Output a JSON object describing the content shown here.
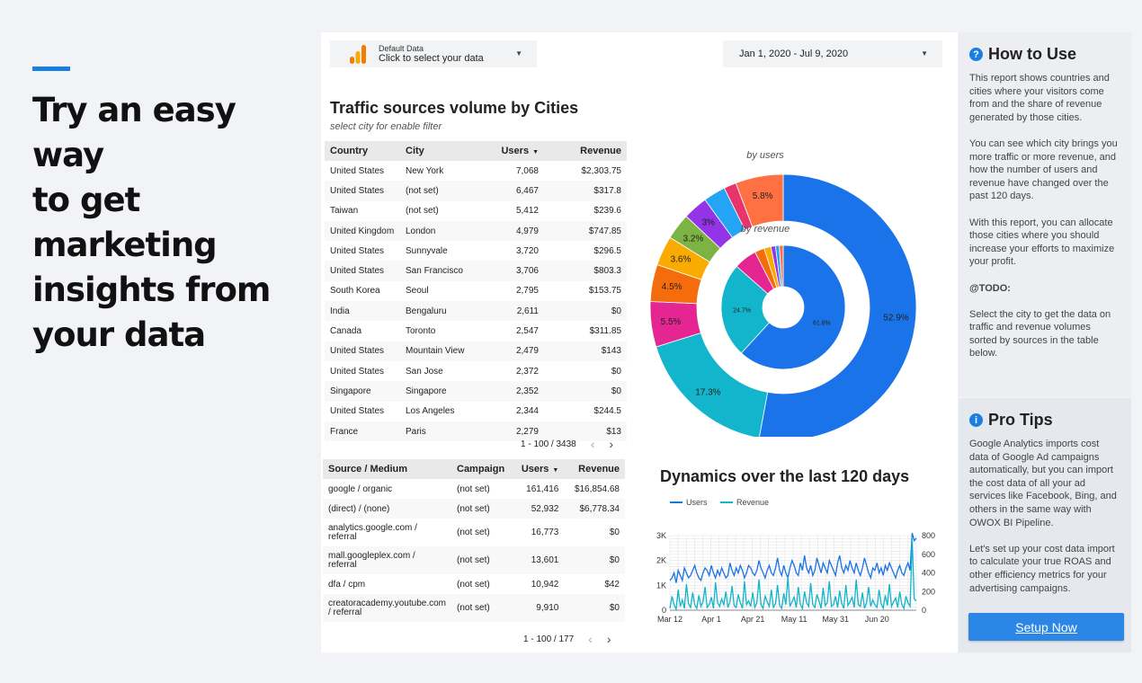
{
  "hero": {
    "line1": "Try an easy way",
    "line2": "to get marketing",
    "line3": "insights from",
    "line4": "your data"
  },
  "selector": {
    "label": "Default Data",
    "value": "Click to select your data"
  },
  "daterange": {
    "value": "Jan 1, 2020 - Jul 9, 2020"
  },
  "section1": {
    "title": "Traffic sources volume by Cities",
    "subtitle": "select city for enable filter"
  },
  "cities_table": {
    "headers": [
      "Country",
      "City",
      "Users",
      "Revenue"
    ],
    "rows": [
      [
        "United States",
        "New York",
        "7,068",
        "$2,303.75"
      ],
      [
        "United States",
        "(not set)",
        "6,467",
        "$317.8"
      ],
      [
        "Taiwan",
        "(not set)",
        "5,412",
        "$239.6"
      ],
      [
        "United Kingdom",
        "London",
        "4,979",
        "$747.85"
      ],
      [
        "United States",
        "Sunnyvale",
        "3,720",
        "$296.5"
      ],
      [
        "United States",
        "San Francisco",
        "3,706",
        "$803.3"
      ],
      [
        "South Korea",
        "Seoul",
        "2,795",
        "$153.75"
      ],
      [
        "India",
        "Bengaluru",
        "2,611",
        "$0"
      ],
      [
        "Canada",
        "Toronto",
        "2,547",
        "$311.85"
      ],
      [
        "United States",
        "Mountain View",
        "2,479",
        "$143"
      ],
      [
        "United States",
        "San Jose",
        "2,372",
        "$0"
      ],
      [
        "Singapore",
        "Singapore",
        "2,352",
        "$0"
      ],
      [
        "United States",
        "Los Angeles",
        "2,344",
        "$244.5"
      ],
      [
        "France",
        "Paris",
        "2,279",
        "$13"
      ]
    ],
    "pager": "1 - 100 / 3438"
  },
  "sources_table": {
    "headers": [
      "Source / Medium",
      "Campaign",
      "Users",
      "Revenue"
    ],
    "rows": [
      [
        "google / organic",
        "(not set)",
        "161,416",
        "$16,854.68"
      ],
      [
        "(direct) / (none)",
        "(not set)",
        "52,932",
        "$6,778.34"
      ],
      [
        "analytics.google.com / referral",
        "(not set)",
        "16,773",
        "$0"
      ],
      [
        "mall.googleplex.com / referral",
        "(not set)",
        "13,601",
        "$0"
      ],
      [
        "dfa / cpm",
        "(not set)",
        "10,942",
        "$42"
      ],
      [
        "creatoracademy.youtube.com / referral",
        "(not set)",
        "9,910",
        "$0"
      ]
    ],
    "pager": "1 - 100 / 177"
  },
  "chart_data": [
    {
      "type": "pie",
      "title": "",
      "outer_label": "by users",
      "inner_label": "by revenue",
      "outer": [
        {
          "label": "52.9%",
          "value": 52.9,
          "color": "#1a73e8"
        },
        {
          "label": "17.3%",
          "value": 17.3,
          "color": "#12b5cb"
        },
        {
          "label": "5.5%",
          "value": 5.5,
          "color": "#e52592"
        },
        {
          "label": "4.5%",
          "value": 4.5,
          "color": "#f56c0c"
        },
        {
          "label": "3.6%",
          "value": 3.6,
          "color": "#f9ab00"
        },
        {
          "label": "3.2%",
          "value": 3.2,
          "color": "#7cb342"
        },
        {
          "label": "3%",
          "value": 3.0,
          "color": "#9334e6"
        },
        {
          "label": "",
          "value": 2.7,
          "color": "#24a4f4"
        },
        {
          "label": "",
          "value": 1.5,
          "color": "#e8336b"
        },
        {
          "label": "5.8%",
          "value": 5.8,
          "color": "#ff7043"
        }
      ],
      "inner": [
        {
          "label": "61.8%",
          "value": 61.8,
          "color": "#1a73e8"
        },
        {
          "label": "24.7%",
          "value": 24.7,
          "color": "#12b5cb"
        },
        {
          "label": "",
          "value": 6.0,
          "color": "#e52592"
        },
        {
          "label": "",
          "value": 2.5,
          "color": "#f56c0c"
        },
        {
          "label": "",
          "value": 1.8,
          "color": "#f9ab00"
        },
        {
          "label": "",
          "value": 1.2,
          "color": "#9334e6"
        },
        {
          "label": "",
          "value": 1.0,
          "color": "#24a4f4"
        },
        {
          "label": "",
          "value": 1.0,
          "color": "#ff7043"
        }
      ]
    },
    {
      "type": "line",
      "title": "Dynamics over the last 120 days",
      "legend": [
        "Users",
        "Revenue"
      ],
      "legend_position": "top-left",
      "x_ticks": [
        "Mar 12",
        "Apr 1",
        "Apr 21",
        "May 11",
        "May 31",
        "Jun 20"
      ],
      "y_left_ticks": [
        "0",
        "1K",
        "2K",
        "3K"
      ],
      "y_right_ticks": [
        "0",
        "200",
        "400",
        "600",
        "800"
      ],
      "y_left_range": [
        0,
        3000
      ],
      "y_right_range": [
        0,
        800
      ],
      "series": [
        {
          "name": "Users",
          "color": "#1a73e8",
          "values": [
            1200,
            1300,
            1500,
            1100,
            1600,
            1400,
            1200,
            1700,
            1500,
            1300,
            1400,
            1600,
            1800,
            1500,
            1300,
            1200,
            1500,
            1700,
            1600,
            1400,
            1800,
            1500,
            1300,
            1600,
            1400,
            1700,
            1500,
            1300,
            1400,
            1900,
            1600,
            1400,
            1700,
            1500,
            1800,
            1600,
            1300,
            1500,
            1800,
            1700,
            1500,
            1400,
            1600,
            2000,
            1700,
            1500,
            1300,
            1600,
            1800,
            1500,
            1400,
            1700,
            2100,
            1600,
            1400,
            1800,
            1500,
            1300,
            1700,
            2000,
            1800,
            1500,
            1400,
            1900,
            1600,
            2200,
            1700,
            1500,
            1800,
            1400,
            1600,
            2100,
            1800,
            1500,
            1900,
            1700,
            1500,
            2000,
            1800,
            1600,
            1400,
            1900,
            2200,
            1700,
            1500,
            1800,
            1600,
            2000,
            1700,
            1500,
            1900,
            1600,
            1400,
            1700,
            2100,
            1800,
            1500,
            1300,
            1700,
            1600,
            1900,
            1500,
            1700,
            1400,
            1800,
            1600,
            1900,
            1700,
            1500,
            1300,
            1600,
            1800,
            1500,
            1400,
            1700,
            1900,
            1600,
            3100,
            2800,
            2900
          ]
        },
        {
          "name": "Revenue",
          "color": "#12b5cb",
          "values": [
            20,
            150,
            60,
            10,
            220,
            40,
            110,
            20,
            280,
            70,
            30,
            190,
            60,
            20,
            160,
            40,
            90,
            250,
            30,
            60,
            140,
            20,
            300,
            80,
            40,
            120,
            60,
            200,
            30,
            90,
            260,
            50,
            30,
            170,
            80,
            20,
            310,
            60,
            100,
            40,
            190,
            30,
            80,
            330,
            60,
            20,
            150,
            90,
            40,
            220,
            30,
            70,
            270,
            50,
            20,
            180,
            60,
            360,
            40,
            90,
            140,
            30,
            250,
            60,
            20,
            200,
            80,
            40,
            290,
            60,
            30,
            170,
            100,
            20,
            240,
            50,
            80,
            310,
            40,
            60,
            150,
            30,
            210,
            70,
            20,
            270,
            50,
            90,
            140,
            30,
            330,
            60,
            40,
            190,
            20,
            80,
            250,
            40,
            110,
            60,
            30,
            220,
            70,
            20,
            160,
            50,
            280,
            40,
            90,
            130,
            30,
            200,
            60,
            20,
            150,
            80,
            40,
            760,
            120,
            100
          ]
        }
      ]
    }
  ],
  "howto": {
    "title": "How to Use",
    "p1": "This report shows countries and cities where your visitors come from and the share of revenue generated by those cities.",
    "p2": "You can see which city brings you more traffic or more revenue, and how the number of users and revenue have changed over the past 120 days.",
    "p3": "With this report, you can allocate those cities where you should increase your efforts to maximize your profit.",
    "p4": "@TODO:",
    "p5": "Select the city to get the data on traffic and revenue volumes sorted by sources in the table below."
  },
  "protips": {
    "title": "Pro Tips",
    "p1": "Google Analytics imports cost data of Google Ad campaigns automatically, but you can import the cost data of all your ad services like Facebook, Bing, and others in the same way with OWOX BI Pipeline.",
    "p2": "Let's set up your cost data import to calculate your true ROAS and other efficiency metrics for your advertising campaigns.",
    "button": "Setup Now"
  }
}
